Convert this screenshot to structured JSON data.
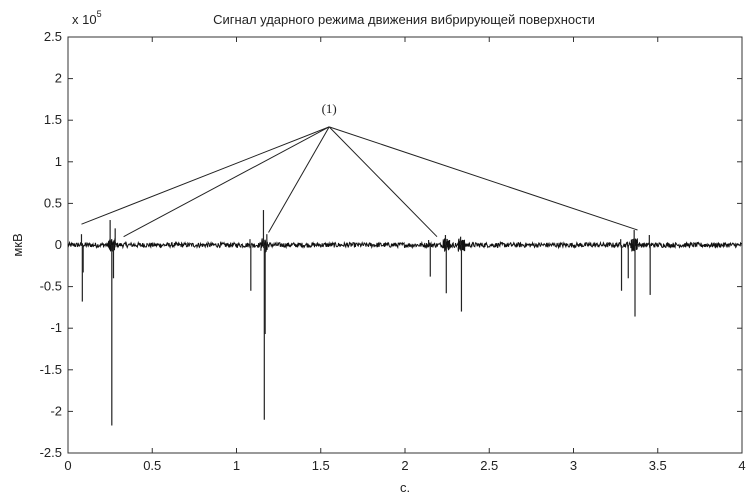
{
  "chart_data": {
    "type": "line",
    "title": "Сигнал ударного режима движения вибрирующей поверхности",
    "xlabel": "с.",
    "ylabel": "мкВ",
    "y_exponent": "x 10",
    "y_exponent_power": "5",
    "xlim": [
      0,
      4
    ],
    "ylim": [
      -2.5,
      2.5
    ],
    "x_ticks": [
      "0",
      "0.5",
      "1",
      "1.5",
      "2",
      "2.5",
      "3",
      "3.5",
      "4"
    ],
    "y_ticks": [
      "2.5",
      "2",
      "1.5",
      "1",
      "0.5",
      "0",
      "-0.5",
      "-1",
      "-1.5",
      "-2",
      "-2.5"
    ],
    "grid": false,
    "noise_amplitude": 0.03,
    "spikes": [
      {
        "x": 0.08,
        "y": 0.13
      },
      {
        "x": 0.085,
        "y": -0.68
      },
      {
        "x": 0.09,
        "y": -0.33
      },
      {
        "x": 0.25,
        "y": 0.3
      },
      {
        "x": 0.26,
        "y": -2.17
      },
      {
        "x": 0.27,
        "y": -0.4
      },
      {
        "x": 0.28,
        "y": 0.2
      },
      {
        "x": 1.08,
        "y": 0.07
      },
      {
        "x": 1.085,
        "y": -0.55
      },
      {
        "x": 1.16,
        "y": 0.42
      },
      {
        "x": 1.165,
        "y": -2.1
      },
      {
        "x": 1.17,
        "y": -1.07
      },
      {
        "x": 1.18,
        "y": 0.13
      },
      {
        "x": 2.14,
        "y": 0.06
      },
      {
        "x": 2.15,
        "y": -0.38
      },
      {
        "x": 2.24,
        "y": 0.12
      },
      {
        "x": 2.245,
        "y": -0.58
      },
      {
        "x": 2.33,
        "y": 0.1
      },
      {
        "x": 2.335,
        "y": -0.8
      },
      {
        "x": 3.28,
        "y": 0.07
      },
      {
        "x": 3.285,
        "y": -0.55
      },
      {
        "x": 3.32,
        "y": 0.04
      },
      {
        "x": 3.325,
        "y": -0.4
      },
      {
        "x": 3.36,
        "y": 0.18
      },
      {
        "x": 3.365,
        "y": -0.86
      },
      {
        "x": 3.45,
        "y": 0.12
      },
      {
        "x": 3.455,
        "y": -0.6
      }
    ],
    "annotation": {
      "text": "(1)",
      "anchor": {
        "x": 1.55,
        "y": 1.42
      },
      "targets": [
        {
          "x": 0.08,
          "y": 0.25
        },
        {
          "x": 0.33,
          "y": 0.1
        },
        {
          "x": 1.19,
          "y": 0.15
        },
        {
          "x": 2.19,
          "y": 0.1
        },
        {
          "x": 3.38,
          "y": 0.18
        }
      ]
    }
  }
}
